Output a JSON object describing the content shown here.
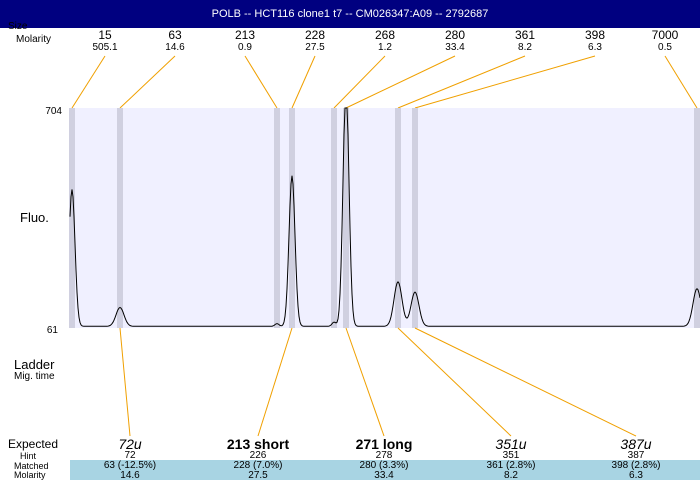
{
  "window": {
    "title": "POLB -- HCT116 clone1 t7 -- CM026347:A09 -- 2792687"
  },
  "header": {
    "size_label": "Size",
    "molarity_label": "Molarity"
  },
  "side": {
    "fluo_label": "Fluo.",
    "ladder_label": "Ladder",
    "migtime_label": "Mig. time",
    "expected_label": "Expected",
    "hint_label": "Hint",
    "matched_label": "Matched",
    "molarity_label": "Molarity"
  },
  "colors": {
    "title_bg": "#000080",
    "plot_bg": "#f0f0ff",
    "band": "#d0d0e0",
    "connector": "#f0a000",
    "trace": "#000000",
    "matched_band": "#a8d4e3"
  },
  "chart_data": {
    "type": "line",
    "ylim": [
      61,
      704
    ],
    "yticks": [
      "704",
      "61"
    ],
    "ladder": [
      {
        "size": "15",
        "molarity": "505.1",
        "peak": 72
      },
      {
        "size": "63",
        "molarity": "14.6",
        "peak": 120
      },
      {
        "size": "213",
        "molarity": "0.9",
        "peak": 277
      },
      {
        "size": "228",
        "molarity": "27.5",
        "peak": 292
      },
      {
        "size": "268",
        "molarity": "1.2",
        "peak": 334
      },
      {
        "size": "280",
        "molarity": "33.4",
        "peak": 346
      },
      {
        "size": "361",
        "molarity": "8.2",
        "peak": 398
      },
      {
        "size": "398",
        "molarity": "6.3",
        "peak": 415
      },
      {
        "size": "7000",
        "molarity": "0.5",
        "peak": 697
      }
    ],
    "expected": [
      {
        "name": "72u",
        "style": "ital",
        "hint": "72",
        "matched": "63 (-12.5%)",
        "molarity": "14.6",
        "peak": 120
      },
      {
        "name": "213 short",
        "style": "bold",
        "hint": "226",
        "matched": "228 (7.0%)",
        "molarity": "27.5",
        "peak": 292
      },
      {
        "name": "271 long",
        "style": "bold",
        "hint": "278",
        "matched": "280 (3.3%)",
        "molarity": "33.4",
        "peak": 346
      },
      {
        "name": "351u",
        "style": "ital",
        "hint": "351",
        "matched": "361 (2.8%)",
        "molarity": "8.2",
        "peak": 398
      },
      {
        "name": "387u",
        "style": "ital",
        "hint": "387",
        "matched": "398 (2.8%)",
        "molarity": "6.3",
        "peak": 415
      }
    ],
    "trace": {
      "baseline": 66,
      "peaks": [
        {
          "x": 72,
          "h": 400,
          "w": 3
        },
        {
          "x": 120,
          "h": 55,
          "w": 4
        },
        {
          "x": 277,
          "h": 8,
          "w": 2
        },
        {
          "x": 292,
          "h": 440,
          "w": 3
        },
        {
          "x": 334,
          "h": 12,
          "w": 2
        },
        {
          "x": 346,
          "h": 700,
          "w": 3
        },
        {
          "x": 398,
          "h": 130,
          "w": 4
        },
        {
          "x": 415,
          "h": 100,
          "w": 4
        },
        {
          "x": 697,
          "h": 110,
          "w": 4
        }
      ]
    }
  }
}
